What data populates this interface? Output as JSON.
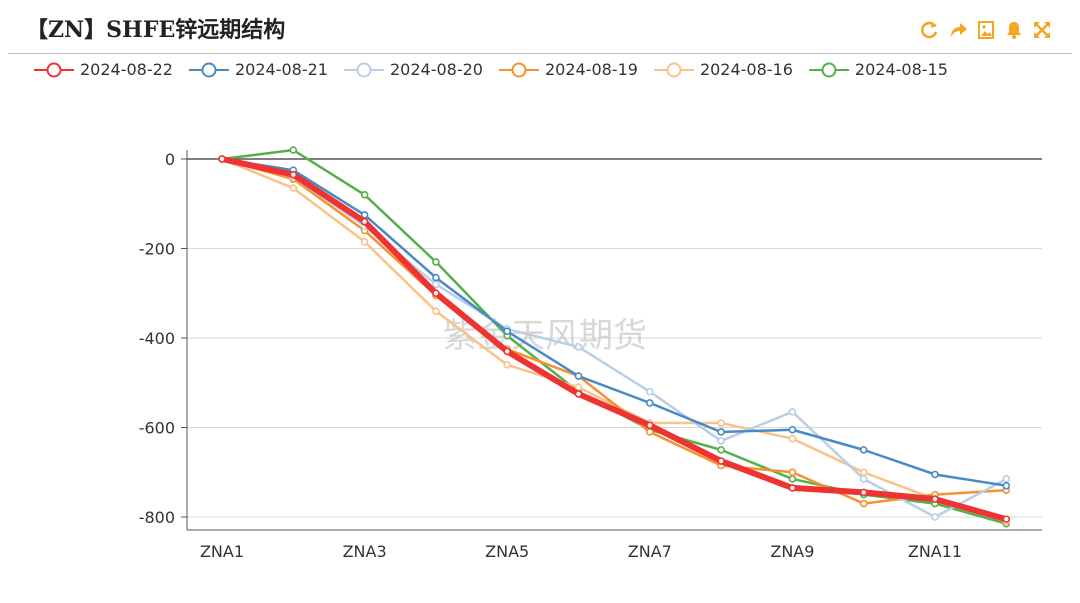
{
  "header": {
    "title": "【ZN】SHFE锌远期结构"
  },
  "toolbar": [
    {
      "icon": "refresh-icon"
    },
    {
      "icon": "share-icon"
    },
    {
      "icon": "save-image-icon"
    },
    {
      "icon": "bell-icon"
    },
    {
      "icon": "fullscreen-icon"
    }
  ],
  "colors": {
    "toolbar": "#f5a623",
    "grid": "#d9d9d9",
    "axis": "#555555"
  },
  "watermark": "紫金天风期货",
  "chart_data": {
    "type": "line",
    "categories": [
      "ZNA1",
      "ZNA2",
      "ZNA3",
      "ZNA4",
      "ZNA5",
      "ZNA6",
      "ZNA7",
      "ZNA8",
      "ZNA9",
      "ZNA10",
      "ZNA11",
      "ZNA12"
    ],
    "x_tick_labels": [
      "ZNA1",
      "ZNA3",
      "ZNA5",
      "ZNA7",
      "ZNA9",
      "ZNA11"
    ],
    "ylim": [
      -800,
      0
    ],
    "y_ticks": [
      0,
      -200,
      -400,
      -600,
      -800
    ],
    "grid": true,
    "legend_position": "top-left",
    "series": [
      {
        "name": "2024-08-22",
        "color": "#ee3333",
        "values": [
          0,
          -35,
          -140,
          -300,
          -430,
          -525,
          -595,
          -675,
          -735,
          -745,
          -760,
          -805
        ]
      },
      {
        "name": "2024-08-21",
        "color": "#4a8ac4",
        "values": [
          0,
          -25,
          -125,
          -265,
          -385,
          -485,
          -545,
          -610,
          -605,
          -650,
          -705,
          -730
        ]
      },
      {
        "name": "2024-08-20",
        "color": "#b9cfe8",
        "values": [
          0,
          -40,
          -150,
          -280,
          -380,
          -420,
          -520,
          -630,
          -565,
          -715,
          -800,
          -715
        ]
      },
      {
        "name": "2024-08-19",
        "color": "#f5922f",
        "values": [
          0,
          -45,
          -160,
          -305,
          -425,
          -485,
          -610,
          -685,
          -700,
          -770,
          -750,
          -740
        ]
      },
      {
        "name": "2024-08-16",
        "color": "#f9c289",
        "values": [
          0,
          -65,
          -185,
          -340,
          -460,
          -510,
          -590,
          -590,
          -625,
          -700,
          -760,
          -810
        ]
      },
      {
        "name": "2024-08-15",
        "color": "#55b04a",
        "values": [
          0,
          20,
          -80,
          -230,
          -395,
          -520,
          -605,
          -650,
          -715,
          -750,
          -770,
          -815
        ]
      }
    ]
  }
}
